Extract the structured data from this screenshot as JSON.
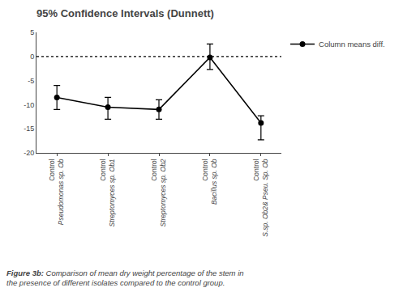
{
  "chart_data": {
    "type": "line",
    "title": "95% Confidence Intervals (Dunnett)",
    "categories": [
      "Control\nPseudomonas sp. Ob",
      "Control\nStreptomyces sp. Ob1",
      "Control\nStreptomyces sp. Ob2",
      "Control\nBacillus sp. Ob",
      "Control\nS.sp. Ob2& Pseu. Sp. Ob"
    ],
    "series": [
      {
        "name": "Column means diff.",
        "color": "#000000",
        "marker": "circle",
        "line_style": "solid",
        "values": [
          -8.5,
          -10.5,
          -11.0,
          -0.2,
          -13.8
        ],
        "error_upper": [
          2.5,
          2.0,
          2.0,
          2.8,
          1.5
        ],
        "error_lower": [
          2.5,
          2.5,
          2.0,
          2.5,
          3.5
        ]
      }
    ],
    "ylim": [
      -20,
      5
    ],
    "yticks": [
      5,
      0,
      -5,
      -10,
      -15,
      -20
    ],
    "reference_lines": [
      {
        "y": 0,
        "color": "#000000",
        "line_style": "dotted"
      }
    ],
    "caption": "Figure 3b: Comparison of mean dry weight percentage of the stem in\nthe presence of different isolates compared to the control group.",
    "legend": "upper right",
    "grid": false
  }
}
